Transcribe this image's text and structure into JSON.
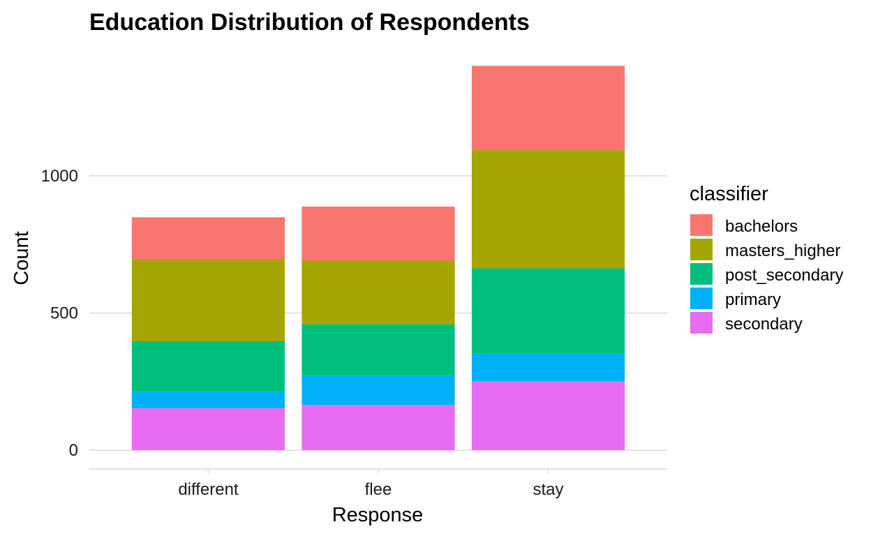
{
  "chart_data": {
    "type": "bar",
    "stacked": true,
    "title": "Education Distribution of Respondents",
    "xlabel": "Response",
    "ylabel": "Count",
    "categories": [
      "different",
      "flee",
      "stay"
    ],
    "ylim": [
      -70,
      1410
    ],
    "yticks": [
      0,
      500,
      1000
    ],
    "grid": true,
    "legend": {
      "title": "classifier",
      "position": "right"
    },
    "series": [
      {
        "name": "secondary",
        "color": "#E76BF3",
        "values": [
          153,
          165,
          252
        ]
      },
      {
        "name": "primary",
        "color": "#00B0F6",
        "values": [
          60,
          108,
          100
        ]
      },
      {
        "name": "post_secondary",
        "color": "#00BF7D",
        "values": [
          184,
          186,
          311
        ]
      },
      {
        "name": "masters_higher",
        "color": "#A3A500",
        "values": [
          300,
          232,
          431
        ]
      },
      {
        "name": "bachelors",
        "color": "#F8766D",
        "values": [
          152,
          197,
          307
        ]
      }
    ],
    "legend_order": [
      "bachelors",
      "masters_higher",
      "post_secondary",
      "primary",
      "secondary"
    ]
  }
}
